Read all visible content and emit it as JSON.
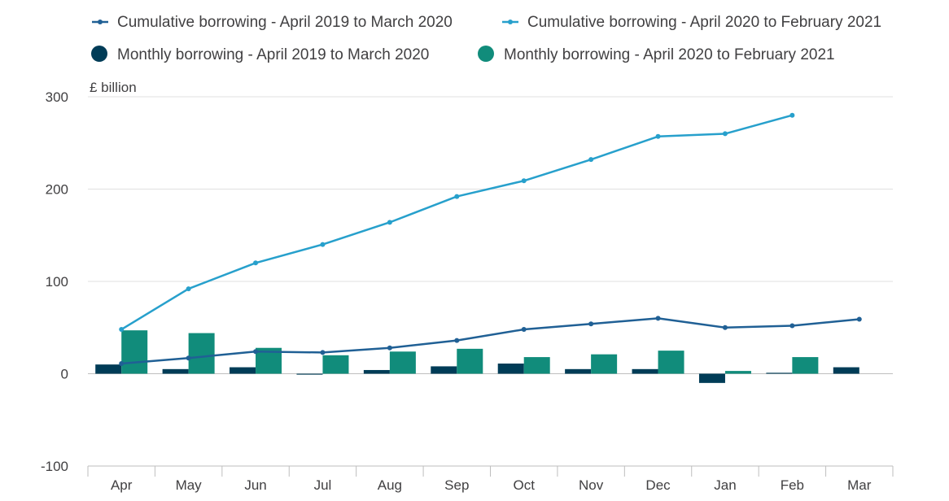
{
  "chart_data": {
    "type": "bar",
    "unit_label": "£ billion",
    "categories": [
      "Apr",
      "May",
      "Jun",
      "Jul",
      "Aug",
      "Sep",
      "Oct",
      "Nov",
      "Dec",
      "Jan",
      "Feb",
      "Mar"
    ],
    "ylim": [
      -100,
      300
    ],
    "yticks": [
      300,
      200,
      100,
      0,
      -100
    ],
    "grid": true,
    "legend_position": "top-left",
    "series": [
      {
        "name": "Cumulative borrowing - April 2019 to March 2020",
        "kind": "line",
        "color": "#206095",
        "values": [
          11,
          17,
          24,
          23,
          28,
          36,
          48,
          54,
          60,
          50,
          52,
          59
        ]
      },
      {
        "name": "Cumulative borrowing - April 2020 to February 2021",
        "kind": "line",
        "color": "#27a0cc",
        "values": [
          48,
          92,
          120,
          140,
          164,
          192,
          209,
          232,
          257,
          260,
          280,
          null
        ]
      },
      {
        "name": "Monthly borrowing - April 2019 to March 2020",
        "kind": "bar",
        "color": "#003c57",
        "values": [
          10,
          5,
          7,
          -1,
          4,
          8,
          11,
          5,
          5,
          -10,
          1,
          7
        ]
      },
      {
        "name": "Monthly borrowing - April 2020 to February 2021",
        "kind": "bar",
        "color": "#118c7b",
        "values": [
          47,
          44,
          28,
          20,
          24,
          27,
          18,
          21,
          25,
          3,
          18,
          null
        ]
      }
    ]
  }
}
